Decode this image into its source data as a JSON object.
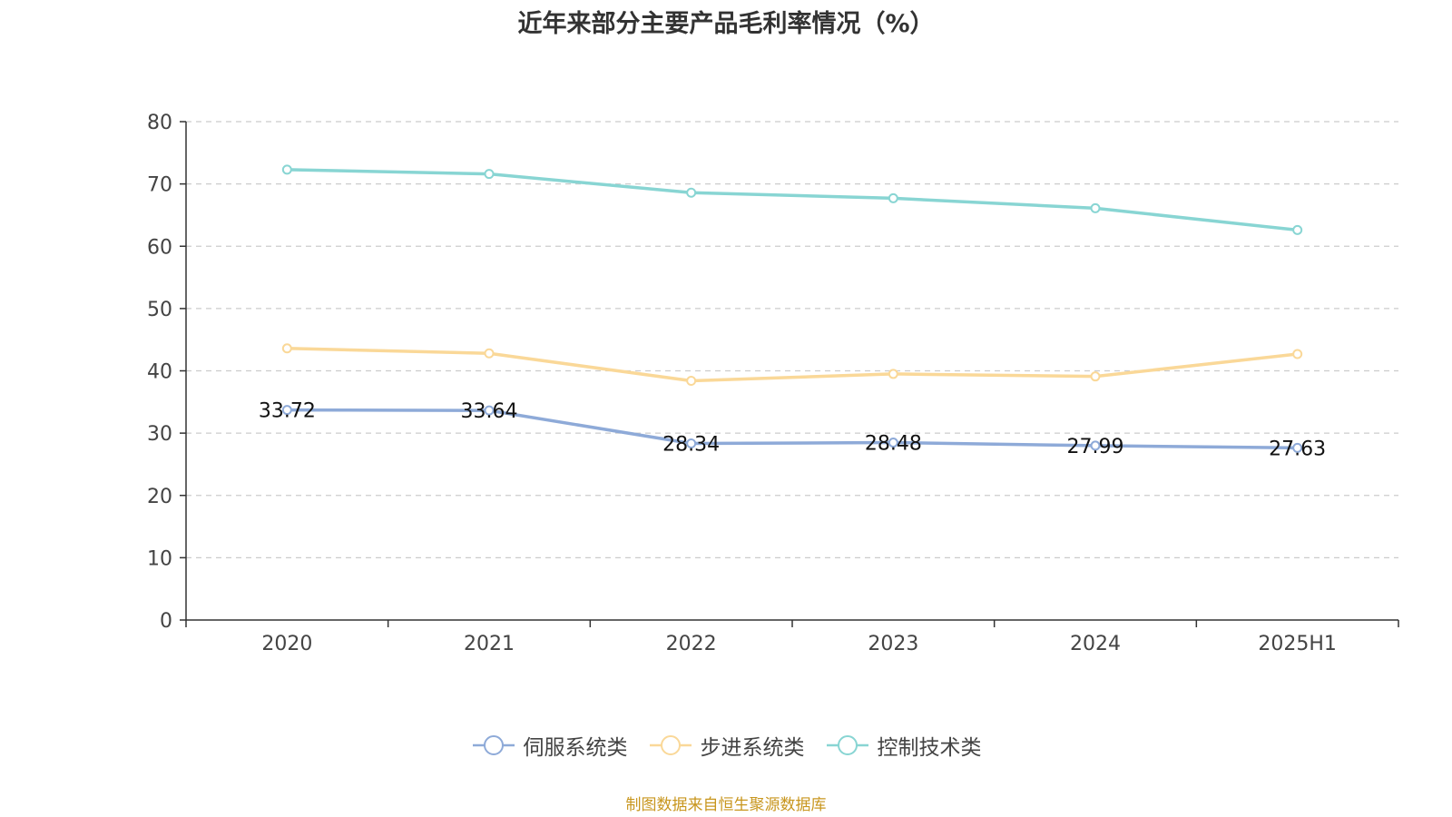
{
  "chart_data": {
    "type": "line",
    "title": "近年来部分主要产品毛利率情况（%）",
    "categories": [
      "2020",
      "2021",
      "2022",
      "2023",
      "2024",
      "2025H1"
    ],
    "ylim": [
      0,
      80
    ],
    "yticks": [
      0,
      10,
      20,
      30,
      40,
      50,
      60,
      70,
      80
    ],
    "grid": true,
    "legend_position": "bottom",
    "series": [
      {
        "name": "伺服系统类",
        "color": "#8eaad8",
        "values": [
          33.72,
          33.64,
          28.34,
          28.48,
          27.99,
          27.63
        ],
        "labels": [
          "33.72",
          "33.64",
          "28.34",
          "28.48",
          "27.99",
          "27.63"
        ]
      },
      {
        "name": "步进系统类",
        "color": "#fad898",
        "values": [
          43.6,
          42.8,
          38.4,
          39.5,
          39.1,
          42.7
        ]
      },
      {
        "name": "控制技术类",
        "color": "#88d5d3",
        "values": [
          72.3,
          71.6,
          68.6,
          67.7,
          66.1,
          62.6
        ]
      }
    ]
  },
  "source_note": "制图数据来自恒生聚源数据库"
}
